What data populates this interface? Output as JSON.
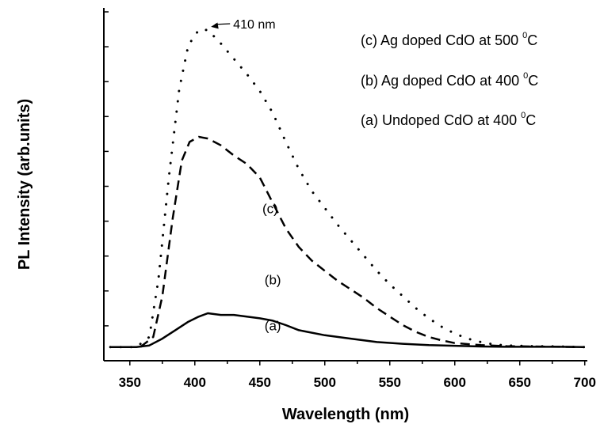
{
  "chart_data": {
    "type": "line",
    "xlabel": "Wavelength (nm)",
    "ylabel": "PL Intensity (arb.units)",
    "xlim": [
      330,
      702
    ],
    "ylim": [
      -0.4,
      10
    ],
    "x_ticks": [
      "350",
      "400",
      "450",
      "500",
      "550",
      "600",
      "650",
      "700"
    ],
    "y_tick_count": 10,
    "y_tick_labels_shown": false,
    "legend_position": "top-right",
    "series": [
      {
        "name": "(c) Ag doped CdO at 500 °C",
        "label_base": "(c) Ag doped CdO at 500 ",
        "label_sup": "0",
        "label_unit": "C",
        "curve_label": "(c)",
        "style": "dotted",
        "x": [
          335,
          355,
          365,
          372,
          380,
          388,
          395,
          403,
          410,
          420,
          430,
          440,
          450,
          460,
          470,
          480,
          490,
          500,
          510,
          520,
          530,
          540,
          550,
          560,
          570,
          580,
          590,
          600,
          610,
          620,
          630,
          640,
          660,
          680,
          700
        ],
        "y": [
          0.0,
          0.0,
          0.3,
          2.0,
          5.0,
          7.6,
          8.9,
          9.35,
          9.35,
          8.95,
          8.5,
          8.05,
          7.55,
          6.9,
          6.05,
          5.25,
          4.6,
          4.1,
          3.6,
          3.15,
          2.7,
          2.25,
          1.85,
          1.5,
          1.15,
          0.85,
          0.6,
          0.4,
          0.25,
          0.15,
          0.08,
          0.05,
          0.03,
          0.02,
          0.0
        ]
      },
      {
        "name": "(b) Ag doped CdO at 400 °C",
        "label_base": "(b) Ag doped CdO at 400 ",
        "label_sup": "0",
        "label_unit": "C",
        "curve_label": "(b)",
        "style": "dashed",
        "x": [
          335,
          358,
          368,
          375,
          383,
          390,
          396,
          403,
          410,
          420,
          430,
          440,
          450,
          460,
          470,
          480,
          490,
          500,
          510,
          520,
          530,
          540,
          550,
          560,
          570,
          580,
          590,
          600,
          620,
          640,
          660,
          680,
          700
        ],
        "y": [
          0.0,
          0.0,
          0.3,
          1.5,
          3.8,
          5.5,
          6.05,
          6.2,
          6.15,
          5.95,
          5.65,
          5.4,
          5.0,
          4.25,
          3.5,
          2.95,
          2.55,
          2.25,
          1.95,
          1.7,
          1.45,
          1.15,
          0.9,
          0.65,
          0.45,
          0.3,
          0.2,
          0.12,
          0.06,
          0.03,
          0.02,
          0.01,
          0.0
        ]
      },
      {
        "name": "(a) Undoped CdO at 400 °C",
        "label_base": "(a) Undoped CdO at 400 ",
        "label_sup": "0",
        "label_unit": "C",
        "curve_label": "(a)",
        "style": "solid",
        "x": [
          335,
          355,
          365,
          375,
          385,
          395,
          403,
          410,
          420,
          430,
          440,
          450,
          460,
          470,
          480,
          500,
          520,
          540,
          560,
          580,
          600,
          620,
          640,
          660,
          680,
          700
        ],
        "y": [
          0.0,
          0.0,
          0.05,
          0.25,
          0.5,
          0.75,
          0.9,
          1.0,
          0.95,
          0.95,
          0.9,
          0.85,
          0.78,
          0.65,
          0.5,
          0.35,
          0.25,
          0.15,
          0.1,
          0.06,
          0.04,
          0.02,
          0.01,
          0.01,
          0.01,
          0.0
        ]
      }
    ],
    "annotation": {
      "text": "410 nm",
      "x": 410,
      "y": 9.35
    }
  }
}
